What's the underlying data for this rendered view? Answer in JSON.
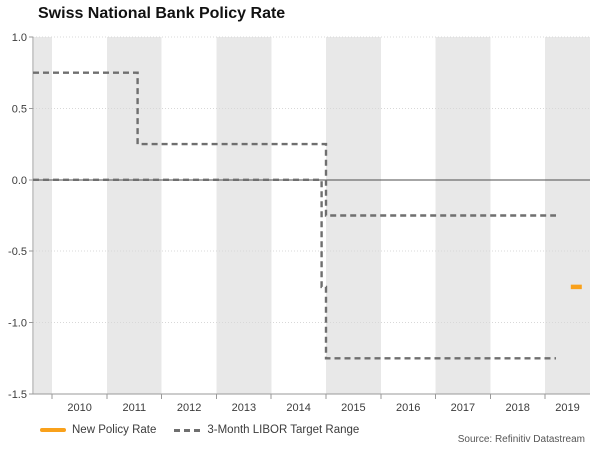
{
  "page": {
    "title": "Swiss National Bank Policy Rate",
    "source": "Source: Refinitiv Datastream"
  },
  "legend": {
    "items": [
      {
        "label": "New Policy Rate",
        "swatch": "solid-orange-line"
      },
      {
        "label": "3-Month LIBOR Target Range",
        "swatch": "dashed-gray-line"
      }
    ]
  },
  "chart_data": {
    "type": "line",
    "title": "Swiss National Bank Policy Rate",
    "xlabel": "",
    "ylabel": "",
    "x_domain": [
      2009.65,
      2019.82
    ],
    "y_domain": [
      -1.5,
      1.0
    ],
    "x_ticks": [
      2010,
      2011,
      2012,
      2013,
      2014,
      2015,
      2016,
      2017,
      2018,
      2019
    ],
    "y_ticks": [
      1.0,
      0.5,
      0.0,
      -0.5,
      -1.0,
      -1.5
    ],
    "grid": "dotted-horizontal",
    "shaded_years": [
      2009,
      2011,
      2013,
      2015,
      2017,
      2019
    ],
    "zero_line": 0.0,
    "legend_position": "bottom-left",
    "series": [
      {
        "id": "libor-target-upper",
        "name": "3-Month LIBOR Target Range (upper bound)",
        "style": "dashed",
        "color": "#6f6f6f",
        "width": 2.4,
        "dash": "6 4",
        "points": [
          [
            2009.65,
            0.75
          ],
          [
            2011.56,
            0.75
          ],
          [
            2011.56,
            0.25
          ],
          [
            2015.0,
            0.25
          ],
          [
            2015.0,
            -0.25
          ],
          [
            2019.2,
            -0.25
          ]
        ]
      },
      {
        "id": "libor-target-lower",
        "name": "3-Month LIBOR Target Range (lower bound)",
        "style": "dashed",
        "color": "#6f6f6f",
        "width": 2.4,
        "dash": "6 4",
        "points": [
          [
            2009.65,
            0.0
          ],
          [
            2014.92,
            0.0
          ],
          [
            2014.92,
            -0.75
          ],
          [
            2015.0,
            -0.75
          ],
          [
            2015.0,
            -1.25
          ],
          [
            2019.2,
            -1.25
          ]
        ]
      },
      {
        "id": "new-policy-rate",
        "name": "New Policy Rate",
        "style": "solid",
        "color": "#F9A11B",
        "width": 4.5,
        "dash": null,
        "points": [
          [
            2019.47,
            -0.75
          ],
          [
            2019.67,
            -0.75
          ]
        ]
      }
    ],
    "colors": {
      "band": "#e8e8e8",
      "gridline": "#d8d8d8",
      "zero_line": "#4d4d4d",
      "axis": "#9a9a9a",
      "tick_label": "#3c3c3c",
      "accent_orange": "#F9A11B",
      "dash_gray": "#6f6f6f"
    }
  }
}
